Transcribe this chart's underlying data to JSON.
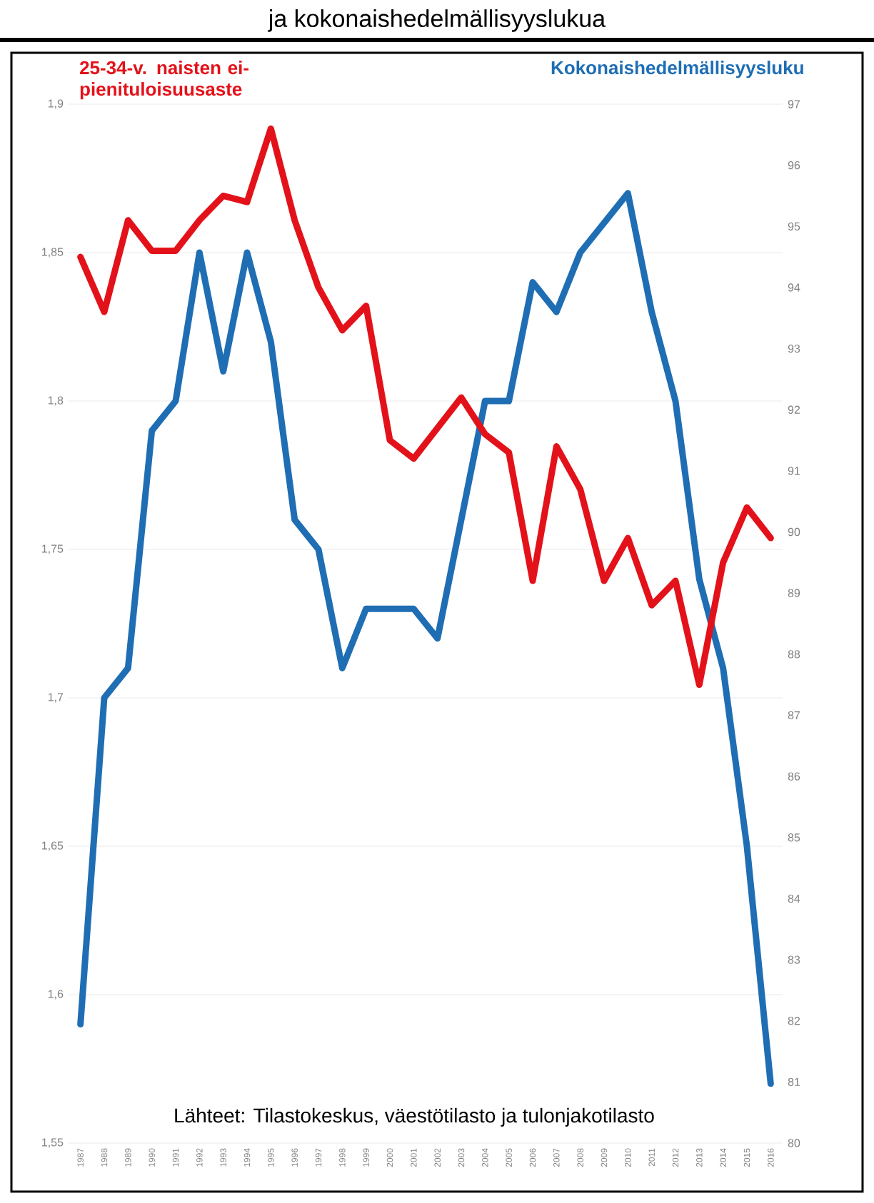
{
  "chart_data": {
    "type": "line",
    "title": "ja kokonaishedelmällisyyslukua",
    "categories": [
      "1987",
      "1988",
      "1989",
      "1990",
      "1991",
      "1992",
      "1993",
      "1994",
      "1995",
      "1996",
      "1997",
      "1998",
      "1999",
      "2000",
      "2001",
      "2002",
      "2003",
      "2004",
      "2005",
      "2006",
      "2007",
      "2008",
      "2009",
      "2010",
      "2011",
      "2012",
      "2013",
      "2014",
      "2015",
      "2016"
    ],
    "series": [
      {
        "name": "25-34-v. naisten ei-pienituloisuusaste",
        "color": "#e3121a",
        "axis": "y2",
        "values": [
          94.5,
          93.6,
          95.1,
          94.6,
          94.6,
          95.1,
          95.5,
          95.4,
          96.6,
          95.1,
          94.0,
          93.3,
          93.7,
          91.5,
          91.2,
          91.7,
          92.2,
          91.6,
          91.3,
          89.2,
          91.4,
          90.7,
          89.2,
          89.9,
          88.8,
          89.2,
          87.5,
          89.5,
          90.4,
          89.9
        ]
      },
      {
        "name": "Kokonaishedelmällisyysluku",
        "color": "#1f6eb4",
        "values": [
          1.59,
          1.7,
          1.71,
          1.79,
          1.8,
          1.85,
          1.81,
          1.85,
          1.82,
          1.76,
          1.75,
          1.71,
          1.73,
          1.73,
          1.73,
          1.72,
          1.76,
          1.8,
          1.8,
          1.84,
          1.83,
          1.85,
          1.86,
          1.87,
          1.83,
          1.8,
          1.74,
          1.71,
          1.65,
          1.57
        ]
      }
    ],
    "ylim": [
      1.55,
      1.9
    ],
    "yticks": [
      {
        "value": 1.55,
        "label": "1,55"
      },
      {
        "value": 1.6,
        "label": "1,6"
      },
      {
        "value": 1.65,
        "label": "1,65"
      },
      {
        "value": 1.7,
        "label": "1,7"
      },
      {
        "value": 1.75,
        "label": "1,75"
      },
      {
        "value": 1.8,
        "label": "1,8"
      },
      {
        "value": 1.85,
        "label": "1,85"
      },
      {
        "value": 1.9,
        "label": "1,9"
      }
    ],
    "y2lim": [
      80,
      97
    ],
    "y2ticks": [
      80,
      81,
      82,
      83,
      84,
      85,
      86,
      87,
      88,
      89,
      90,
      91,
      92,
      93,
      94,
      95,
      96,
      97
    ],
    "grid": "y",
    "line_style": "solid",
    "marker": "none",
    "annotations": [
      "Lähteet: Tilastokeskus, väestötilasto ja tulonjakotilasto"
    ]
  }
}
